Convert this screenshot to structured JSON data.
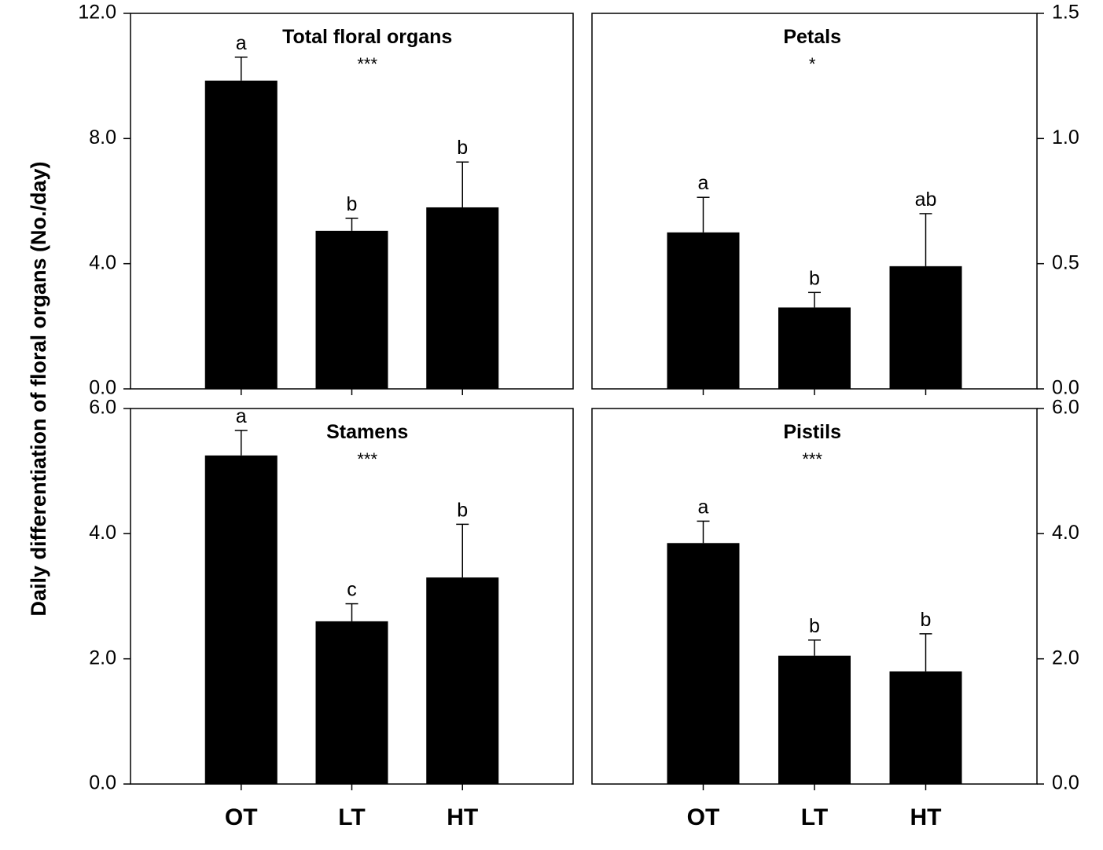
{
  "chart_data": [
    {
      "type": "bar",
      "title": "Total floral organs",
      "significance": "***",
      "categories": [
        "OT",
        "LT",
        "HT"
      ],
      "values": [
        9.85,
        5.05,
        5.8
      ],
      "errors": [
        0.75,
        0.4,
        1.45
      ],
      "letters": [
        "a",
        "b",
        "b"
      ],
      "ylim": [
        0,
        12
      ],
      "yticks": [
        "0.0",
        "4.0",
        "8.0",
        "12.0"
      ],
      "yaxis_side": "left"
    },
    {
      "type": "bar",
      "title": "Petals",
      "significance": "*",
      "categories": [
        "OT",
        "LT",
        "HT"
      ],
      "values": [
        0.625,
        0.325,
        0.49
      ],
      "errors": [
        0.14,
        0.06,
        0.21
      ],
      "letters": [
        "a",
        "b",
        "ab"
      ],
      "ylim": [
        0,
        1.5
      ],
      "yticks": [
        "0.0",
        "0.5",
        "1.0",
        "1.5"
      ],
      "yaxis_side": "right"
    },
    {
      "type": "bar",
      "title": "Stamens",
      "significance": "***",
      "categories": [
        "OT",
        "LT",
        "HT"
      ],
      "values": [
        5.25,
        2.6,
        3.3
      ],
      "errors": [
        0.4,
        0.28,
        0.85
      ],
      "letters": [
        "a",
        "c",
        "b"
      ],
      "ylim": [
        0,
        6
      ],
      "yticks": [
        "0.0",
        "2.0",
        "4.0",
        "6.0"
      ],
      "yaxis_side": "left"
    },
    {
      "type": "bar",
      "title": "Pistils",
      "significance": "***",
      "categories": [
        "OT",
        "LT",
        "HT"
      ],
      "values": [
        3.85,
        2.05,
        1.8
      ],
      "errors": [
        0.35,
        0.25,
        0.6
      ],
      "letters": [
        "a",
        "b",
        "b"
      ],
      "ylim": [
        0,
        6
      ],
      "yticks": [
        "0.0",
        "2.0",
        "4.0",
        "6.0"
      ],
      "yaxis_side": "right"
    }
  ],
  "ylabel": "Daily differentiation of floral organs (No./day)",
  "bar_color": "#000000"
}
